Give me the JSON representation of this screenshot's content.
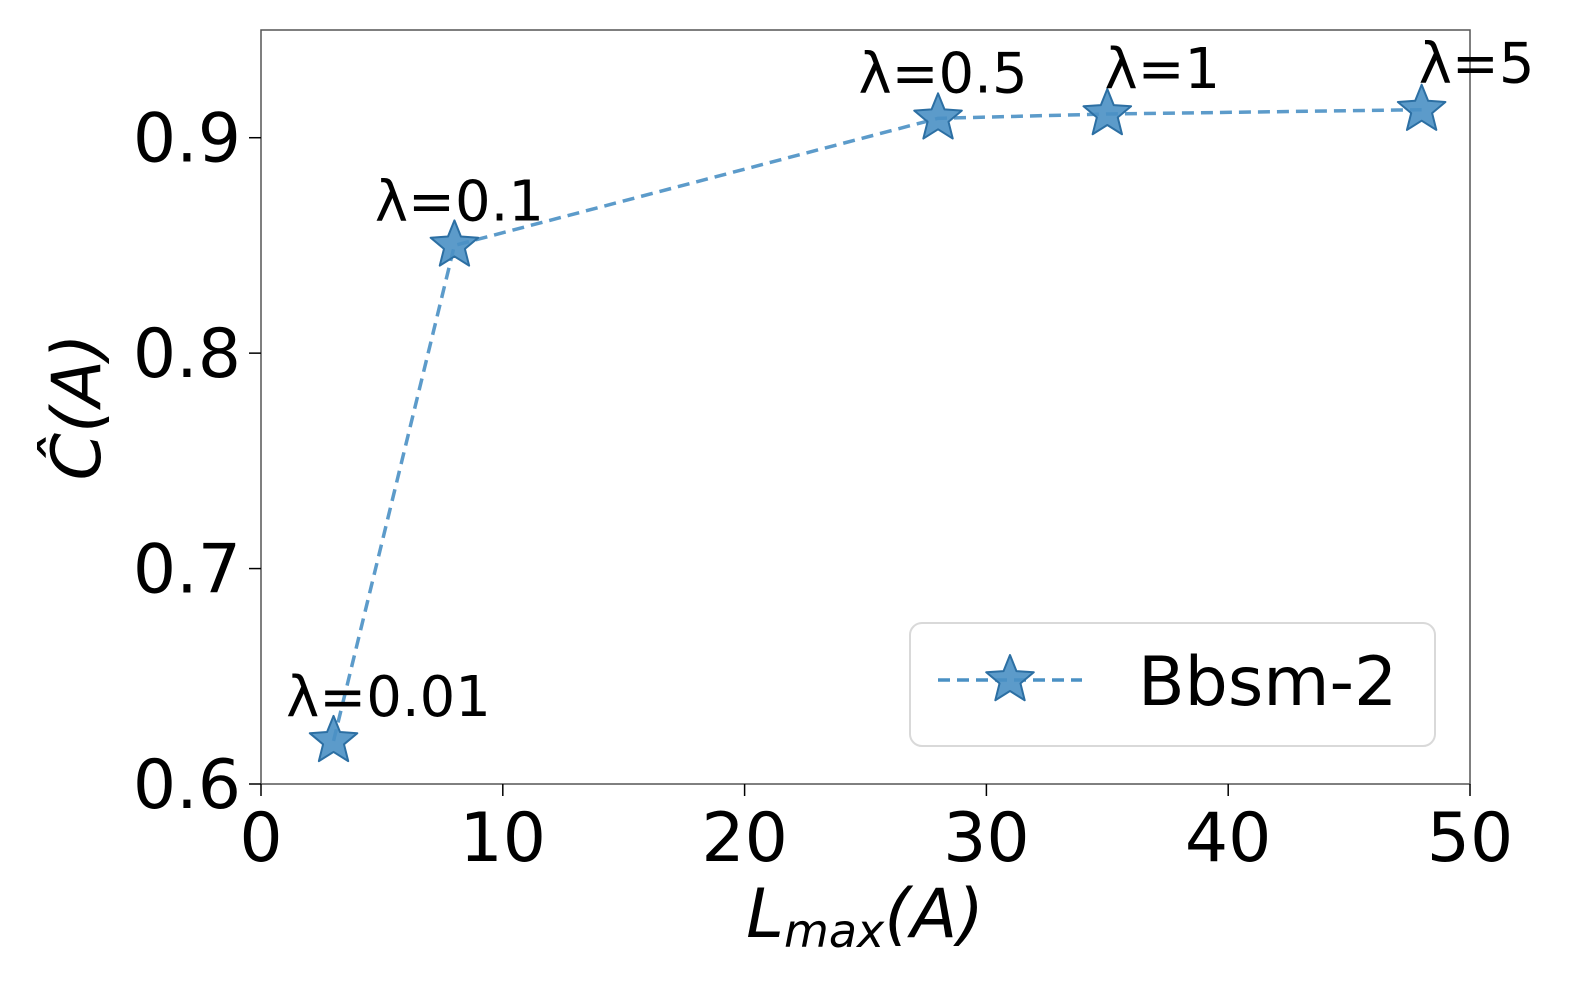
{
  "chart_data": {
    "type": "line",
    "x": [
      3,
      8,
      28,
      35,
      48
    ],
    "series": [
      {
        "name": "Bbsm-2",
        "values": [
          0.62,
          0.85,
          0.909,
          0.911,
          0.913
        ],
        "color": "#4a90c4",
        "line_style": "dashed",
        "marker": "star"
      }
    ],
    "annotations": [
      "λ=0.01",
      "λ=0.1",
      "λ=0.5",
      "λ=1",
      "λ=5"
    ],
    "xlabel": "L",
    "xlabel_sub": "max",
    "xlabel_suffix": "(A)",
    "ylabel": "Ĉ(A)",
    "xlim": [
      0,
      50
    ],
    "ylim": [
      0.6,
      0.95
    ],
    "xticks": [
      "0",
      "10",
      "20",
      "30",
      "40",
      "50"
    ],
    "xtick_values": [
      0,
      10,
      20,
      30,
      40,
      50
    ],
    "yticks": [
      "0.6",
      "0.7",
      "0.8",
      "0.9"
    ],
    "ytick_values": [
      0.6,
      0.7,
      0.8,
      0.9
    ],
    "grid": false,
    "legend_position": "lower-right"
  }
}
